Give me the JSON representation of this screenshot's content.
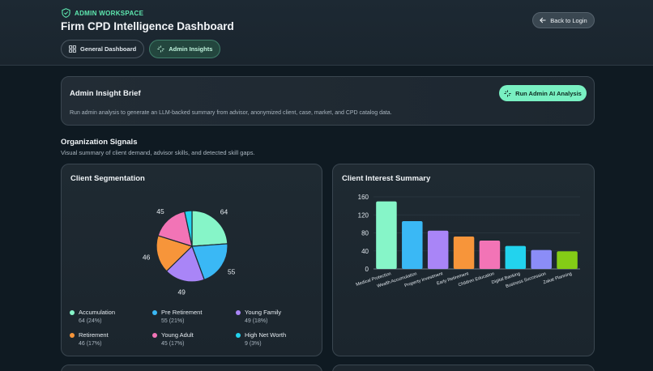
{
  "header": {
    "eyebrow": "ADMIN WORKSPACE",
    "title": "Firm CPD Intelligence Dashboard",
    "back_label": "Back to Login",
    "tabs": [
      {
        "label": "General Dashboard",
        "icon": "grid-icon",
        "active": false
      },
      {
        "label": "Admin Insights",
        "icon": "spark-icon",
        "active": true
      }
    ]
  },
  "brief": {
    "title": "Admin Insight Brief",
    "description": "Run admin analysis to generate an LLM-backed summary from advisor, anonymized client, case, market, and CPD catalog data.",
    "run_label": "Run Admin AI Analysis"
  },
  "signals": {
    "title": "Organization Signals",
    "subtitle": "Visual summary of client demand, advisor skills, and detected skill gaps."
  },
  "segmentation": {
    "title": "Client Segmentation",
    "legend": [
      {
        "name": "Accumulation",
        "value": "64 (24%)",
        "color": "#86f5c8"
      },
      {
        "name": "Pre Retirement",
        "value": "55 (21%)",
        "color": "#3ab8f5"
      },
      {
        "name": "Young Family",
        "value": "49 (18%)",
        "color": "#a985f7"
      },
      {
        "name": "Retirement",
        "value": "46 (17%)",
        "color": "#f7953a"
      },
      {
        "name": "Young Adult",
        "value": "45 (17%)",
        "color": "#f274b6"
      },
      {
        "name": "High Net Worth",
        "value": "9 (3%)",
        "color": "#22d3ee"
      }
    ]
  },
  "interest": {
    "title": "Client Interest Summary"
  },
  "chart_data": [
    {
      "type": "pie",
      "title": "Client Segmentation",
      "categories": [
        "Accumulation",
        "Pre Retirement",
        "Young Family",
        "Retirement",
        "Young Adult",
        "High Net Worth"
      ],
      "values": [
        64,
        55,
        49,
        46,
        45,
        9
      ],
      "labels": [
        "64",
        "55",
        "49",
        "46",
        "45",
        ""
      ],
      "colors": [
        "#86f5c8",
        "#3ab8f5",
        "#a985f7",
        "#f7953a",
        "#f274b6",
        "#22d3ee"
      ]
    },
    {
      "type": "bar",
      "title": "Client Interest Summary",
      "categories": [
        "Medical Protection",
        "Wealth Accumulation",
        "Property Investment",
        "Early Retirement",
        "Children Education",
        "Digital Banking",
        "Business Succession",
        "Zakat Planning"
      ],
      "values": [
        150,
        106,
        85,
        72,
        63,
        51,
        42,
        39
      ],
      "colors": [
        "#86f5c8",
        "#3ab8f5",
        "#a985f7",
        "#f7953a",
        "#f274b6",
        "#22d3ee",
        "#8b8df7",
        "#84cc16"
      ],
      "yticks": [
        0,
        40,
        80,
        120,
        160
      ],
      "ylim": [
        0,
        160
      ],
      "grid": true
    }
  ]
}
